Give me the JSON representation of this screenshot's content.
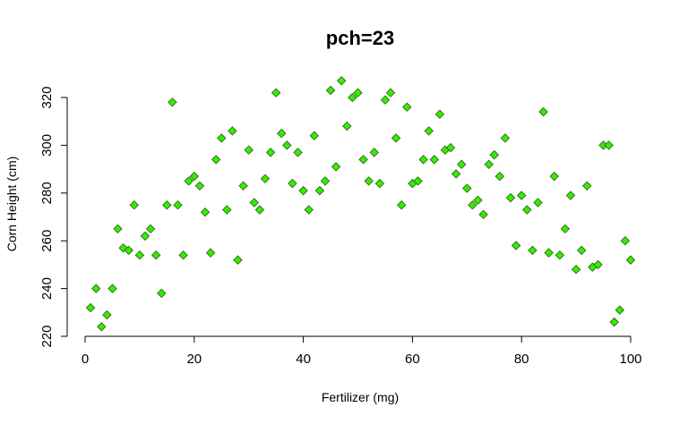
{
  "chart_data": {
    "type": "scatter",
    "title": "pch=23",
    "xlabel": "Fertilizer (mg)",
    "ylabel": "Corn Height (cm)",
    "xlim": [
      0,
      100
    ],
    "ylim": [
      220,
      330
    ],
    "x_ticks": [
      0,
      20,
      40,
      60,
      80,
      100
    ],
    "y_ticks": [
      220,
      240,
      260,
      280,
      300,
      320
    ],
    "grid": false,
    "marker": "diamond",
    "point_fill": "#33ee00",
    "point_stroke": "#2e6b1a",
    "series": [
      {
        "x": [
          1,
          2,
          3,
          4,
          5,
          6,
          7,
          8,
          9,
          10,
          11,
          12,
          13,
          14,
          15,
          16,
          17,
          18,
          19,
          20,
          21,
          22,
          23,
          24,
          25,
          26,
          27,
          28,
          29,
          30,
          31,
          32,
          33,
          34,
          35,
          36,
          37,
          38,
          39,
          40,
          41,
          42,
          43,
          44,
          45,
          46,
          47,
          48,
          49,
          50,
          51,
          52,
          53,
          54,
          55,
          56,
          57,
          58,
          59,
          60,
          61,
          62,
          63,
          64,
          65,
          66,
          67,
          68,
          69,
          70,
          71,
          72,
          73,
          74,
          75,
          76,
          77,
          78,
          79,
          80,
          81,
          82,
          83,
          84,
          85,
          86,
          87,
          88,
          89,
          90,
          91,
          92,
          93,
          94,
          95,
          96,
          97,
          98,
          99,
          100
        ],
        "y": [
          232,
          240,
          224,
          229,
          240,
          265,
          257,
          256,
          275,
          254,
          262,
          265,
          254,
          238,
          275,
          318,
          275,
          254,
          285,
          287,
          283,
          272,
          255,
          294,
          303,
          273,
          306,
          252,
          283,
          298,
          276,
          273,
          286,
          297,
          322,
          305,
          300,
          284,
          297,
          281,
          273,
          304,
          281,
          285,
          323,
          291,
          327,
          308,
          320,
          322,
          294,
          285,
          297,
          284,
          319,
          322,
          303,
          275,
          316,
          284,
          285,
          294,
          306,
          294,
          313,
          298,
          299,
          288,
          292,
          282,
          275,
          277,
          271,
          292,
          296,
          287,
          303,
          278,
          258,
          279,
          273,
          256,
          276,
          314,
          255,
          287,
          254,
          265,
          279,
          248,
          256,
          283,
          249,
          250,
          300,
          300,
          226,
          231,
          260,
          252
        ]
      }
    ]
  }
}
